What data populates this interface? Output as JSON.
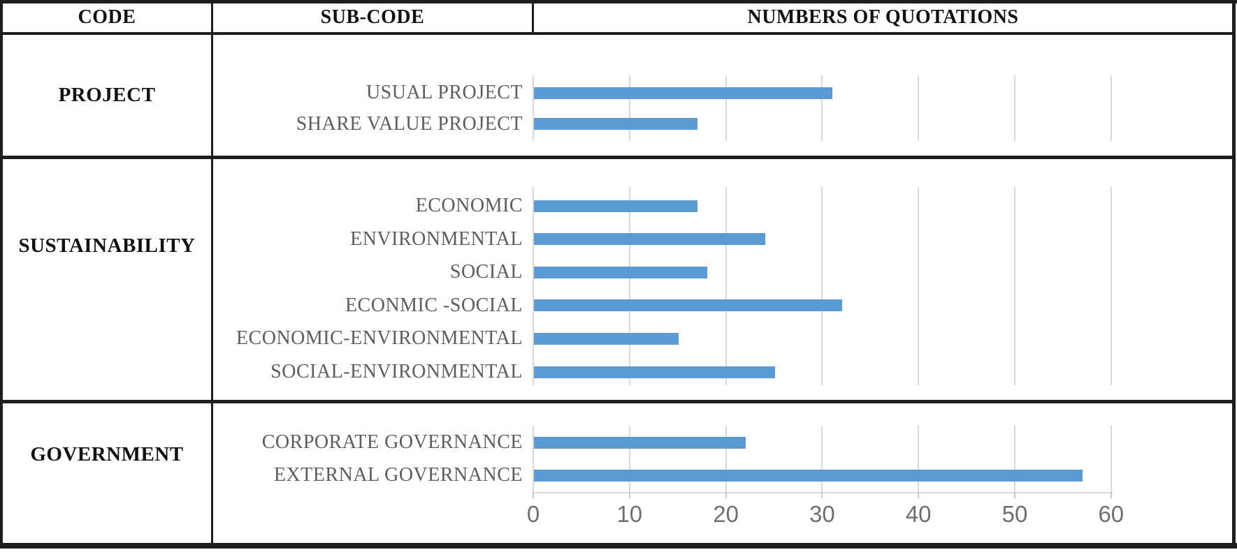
{
  "figure": {
    "kind": "table-with-embedded-horizontal-bar-chart"
  },
  "header": {
    "col1": "CODE",
    "col2": "SUB-CODE",
    "col3": "NUMBERS OF QUOTATIONS"
  },
  "colors": {
    "bar": "#5B9BD5",
    "gridline": "#D9D9D9",
    "category_label": "#5D5D5D",
    "axis_text": "#6E6E6E",
    "table_border": "#1E1E1E"
  },
  "chart_data": {
    "type": "bar",
    "orientation": "horizontal",
    "title": "NUMBERS OF QUOTATIONS",
    "xlabel": "",
    "ylabel": "",
    "xlim": [
      0,
      70
    ],
    "x_ticks": [
      0,
      10,
      20,
      30,
      40,
      50,
      60
    ],
    "gridlines": true,
    "legend": false,
    "groups": [
      {
        "code": "PROJECT",
        "bars": [
          {
            "label": "USUAL PROJECT",
            "value": 31
          },
          {
            "label": "SHARE VALUE PROJECT",
            "value": 17
          }
        ]
      },
      {
        "code": "SUSTAINABILITY",
        "bars": [
          {
            "label": "ECONOMIC",
            "value": 17
          },
          {
            "label": "ENVIRONMENTAL",
            "value": 24
          },
          {
            "label": "SOCIAL",
            "value": 18
          },
          {
            "label": "ECONMIC -SOCIAL",
            "value": 32
          },
          {
            "label": "ECONOMIC-ENVIRONMENTAL",
            "value": 15
          },
          {
            "label": "SOCIAL-ENVIRONMENTAL",
            "value": 25
          }
        ]
      },
      {
        "code": "GOVERNMENT",
        "bars": [
          {
            "label": "CORPORATE GOVERNANCE",
            "value": 22
          },
          {
            "label": "EXTERNAL GOVERNANCE",
            "value": 57
          }
        ]
      }
    ]
  }
}
